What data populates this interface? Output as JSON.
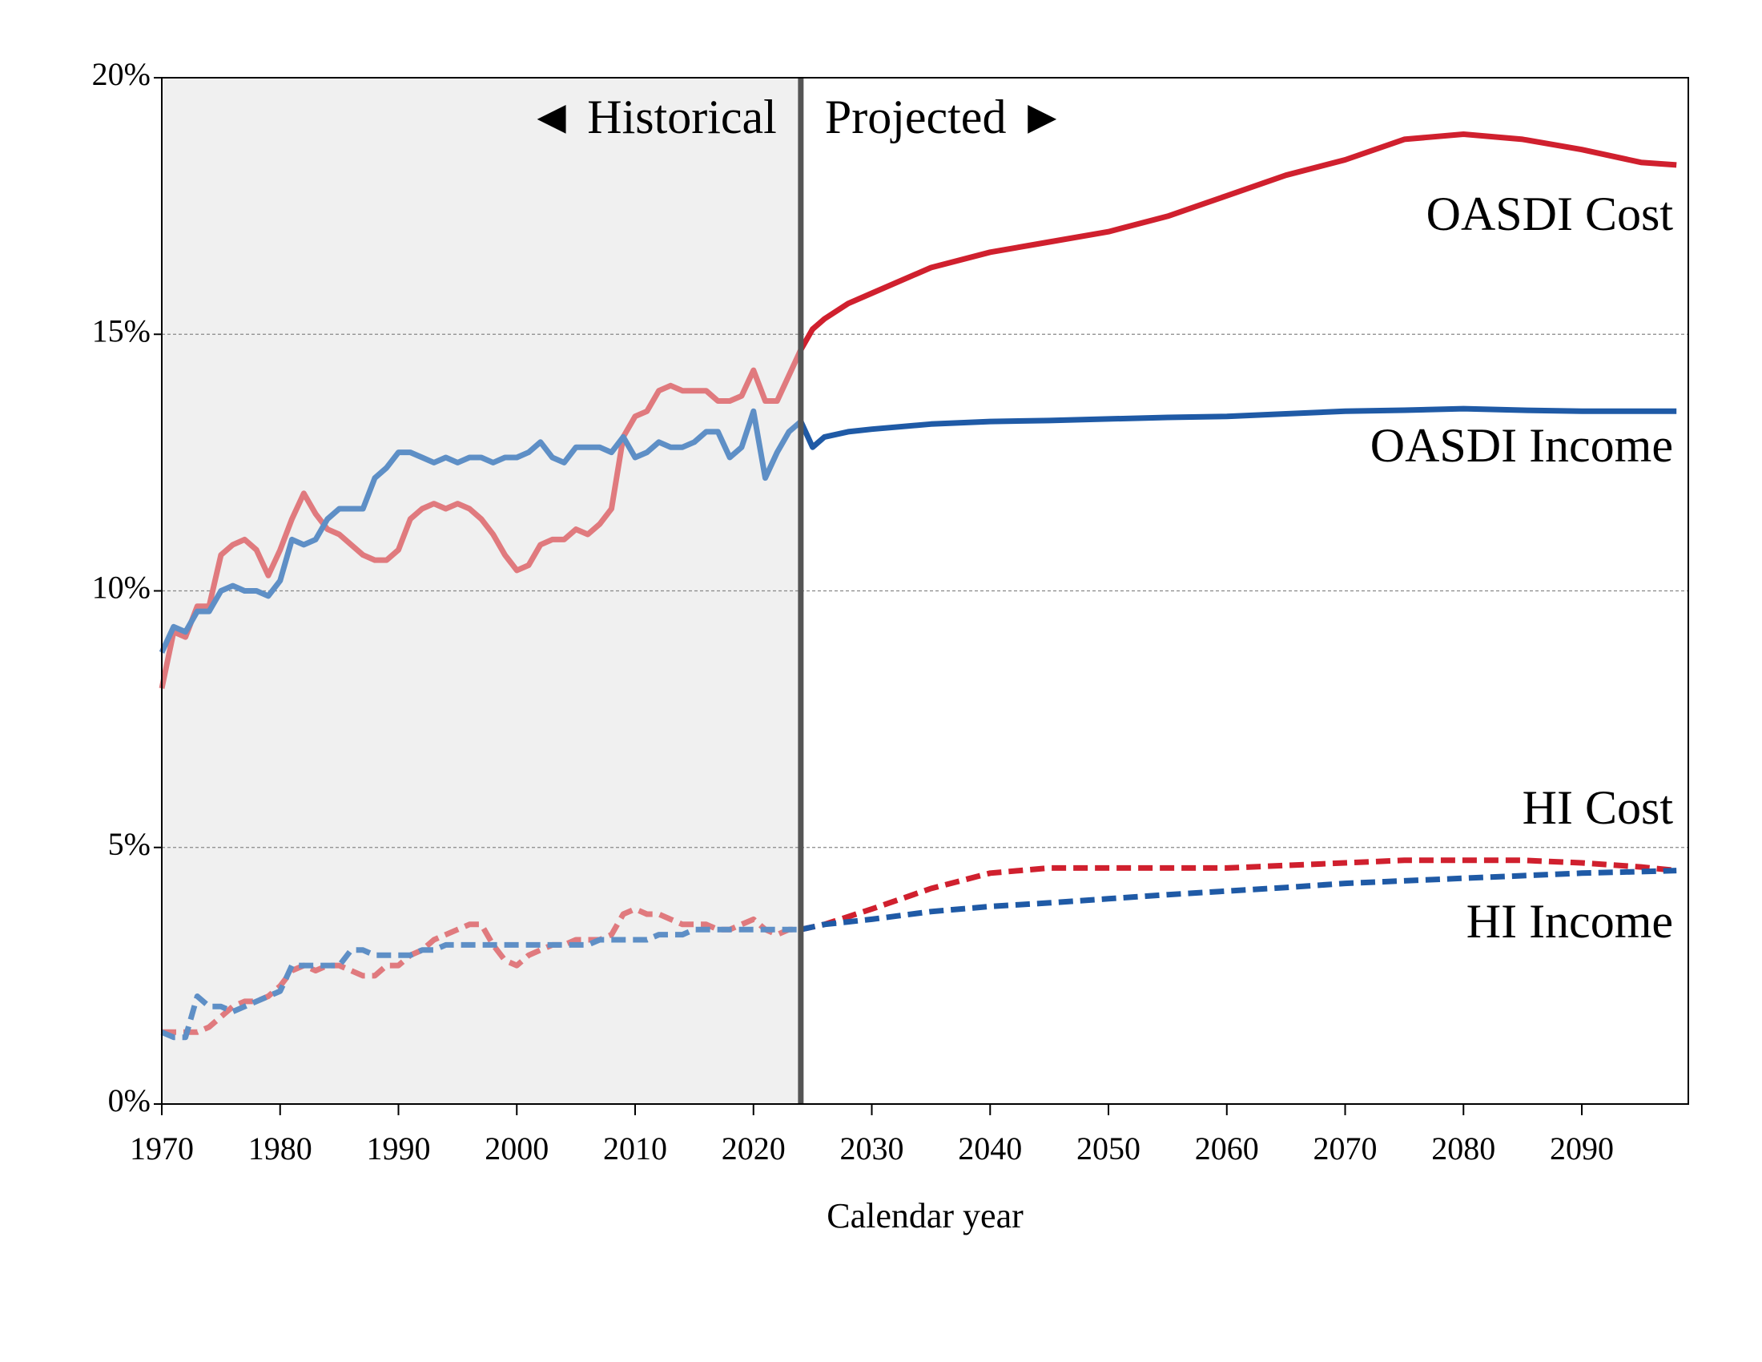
{
  "chart_data": {
    "type": "line",
    "x_label": "Calendar year",
    "annotations": [
      "◄ Historical",
      "Projected ►"
    ],
    "projection_start": 2024,
    "x": [
      1970,
      1971,
      1972,
      1973,
      1974,
      1975,
      1976,
      1977,
      1978,
      1979,
      1980,
      1981,
      1982,
      1983,
      1984,
      1985,
      1986,
      1987,
      1988,
      1989,
      1990,
      1991,
      1992,
      1993,
      1994,
      1995,
      1996,
      1997,
      1998,
      1999,
      2000,
      2001,
      2002,
      2003,
      2004,
      2005,
      2006,
      2007,
      2008,
      2009,
      2010,
      2011,
      2012,
      2013,
      2014,
      2015,
      2016,
      2017,
      2018,
      2019,
      2020,
      2021,
      2022,
      2023,
      2024,
      2025,
      2026,
      2028,
      2030,
      2035,
      2040,
      2045,
      2050,
      2055,
      2060,
      2065,
      2070,
      2075,
      2080,
      2085,
      2090,
      2095,
      2098
    ],
    "series": [
      {
        "name": "OASDI Cost",
        "color": "#d0202e",
        "historical_color": "#e07a7e",
        "dash": false,
        "values": [
          8.1,
          9.2,
          9.1,
          9.7,
          9.7,
          10.7,
          10.9,
          11.0,
          10.8,
          10.3,
          10.8,
          11.4,
          11.9,
          11.5,
          11.2,
          11.1,
          10.9,
          10.7,
          10.6,
          10.6,
          10.8,
          11.4,
          11.6,
          11.7,
          11.6,
          11.7,
          11.6,
          11.4,
          11.1,
          10.7,
          10.4,
          10.5,
          10.9,
          11.0,
          11.0,
          11.2,
          11.1,
          11.3,
          11.6,
          13.0,
          13.4,
          13.5,
          13.9,
          14.0,
          13.9,
          13.9,
          13.9,
          13.7,
          13.7,
          13.8,
          14.3,
          13.7,
          13.7,
          14.2,
          14.7,
          15.1,
          15.3,
          15.6,
          15.8,
          16.3,
          16.6,
          16.8,
          17.0,
          17.3,
          17.7,
          18.1,
          18.4,
          18.8,
          18.9,
          18.8,
          18.6,
          18.35,
          18.3
        ]
      },
      {
        "name": "OASDI Income",
        "color": "#1f5aa6",
        "historical_color": "#5e8fc6",
        "dash": false,
        "values": [
          8.8,
          9.3,
          9.2,
          9.6,
          9.6,
          10.0,
          10.1,
          10.0,
          10.0,
          9.9,
          10.2,
          11.0,
          10.9,
          11.0,
          11.4,
          11.6,
          11.6,
          11.6,
          12.2,
          12.4,
          12.7,
          12.7,
          12.6,
          12.5,
          12.6,
          12.5,
          12.6,
          12.6,
          12.5,
          12.6,
          12.6,
          12.7,
          12.9,
          12.6,
          12.5,
          12.8,
          12.8,
          12.8,
          12.7,
          13.0,
          12.6,
          12.7,
          12.9,
          12.8,
          12.8,
          12.9,
          13.1,
          13.1,
          12.6,
          12.8,
          13.5,
          12.2,
          12.7,
          13.1,
          13.3,
          12.8,
          13.0,
          13.1,
          13.15,
          13.25,
          13.3,
          13.32,
          13.35,
          13.38,
          13.4,
          13.45,
          13.5,
          13.52,
          13.55,
          13.52,
          13.5,
          13.5,
          13.5
        ]
      },
      {
        "name": "HI Cost",
        "color": "#d0202e",
        "historical_color": "#e07a7e",
        "dash": true,
        "values": [
          1.4,
          1.4,
          1.4,
          1.4,
          1.5,
          1.7,
          1.9,
          2.0,
          2.0,
          2.1,
          2.3,
          2.6,
          2.7,
          2.6,
          2.7,
          2.7,
          2.6,
          2.5,
          2.5,
          2.7,
          2.7,
          2.9,
          3.0,
          3.2,
          3.3,
          3.4,
          3.5,
          3.5,
          3.1,
          2.8,
          2.7,
          2.9,
          3.0,
          3.1,
          3.1,
          3.2,
          3.2,
          3.2,
          3.3,
          3.7,
          3.8,
          3.7,
          3.7,
          3.6,
          3.5,
          3.5,
          3.5,
          3.4,
          3.4,
          3.5,
          3.6,
          3.4,
          3.3,
          3.4,
          3.4,
          3.45,
          3.5,
          3.65,
          3.8,
          4.2,
          4.5,
          4.6,
          4.6,
          4.6,
          4.6,
          4.65,
          4.7,
          4.75,
          4.75,
          4.75,
          4.7,
          4.62,
          4.55
        ]
      },
      {
        "name": "HI Income",
        "color": "#1f5aa6",
        "historical_color": "#5e8fc6",
        "dash": true,
        "values": [
          1.4,
          1.3,
          1.3,
          2.1,
          1.9,
          1.9,
          1.8,
          1.9,
          2.0,
          2.1,
          2.2,
          2.7,
          2.7,
          2.7,
          2.7,
          2.7,
          3.0,
          3.0,
          2.9,
          2.9,
          2.9,
          2.9,
          3.0,
          3.0,
          3.1,
          3.1,
          3.1,
          3.1,
          3.1,
          3.1,
          3.1,
          3.1,
          3.1,
          3.1,
          3.1,
          3.1,
          3.1,
          3.2,
          3.2,
          3.2,
          3.2,
          3.2,
          3.3,
          3.3,
          3.3,
          3.4,
          3.4,
          3.4,
          3.4,
          3.4,
          3.4,
          3.4,
          3.4,
          3.4,
          3.4,
          3.45,
          3.5,
          3.55,
          3.6,
          3.75,
          3.85,
          3.92,
          4.0,
          4.08,
          4.15,
          4.22,
          4.3,
          4.35,
          4.4,
          4.45,
          4.5,
          4.53,
          4.55
        ]
      }
    ],
    "xlim": [
      1970,
      2099
    ],
    "xticks": [
      1970,
      1980,
      1990,
      2000,
      2010,
      2020,
      2030,
      2040,
      2050,
      2060,
      2070,
      2080,
      2090
    ],
    "ylim": [
      0,
      20
    ],
    "yticks": [
      {
        "value": 0,
        "label": "0%"
      },
      {
        "value": 5,
        "label": "5%"
      },
      {
        "value": 10,
        "label": "10%"
      },
      {
        "value": 15,
        "label": "15%"
      },
      {
        "value": 20,
        "label": "20%"
      }
    ],
    "grid": true
  }
}
